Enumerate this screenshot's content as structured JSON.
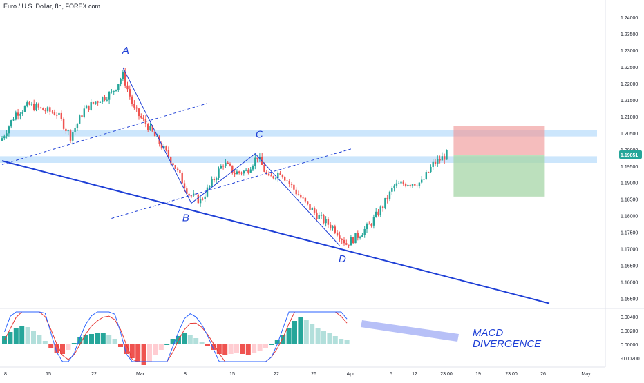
{
  "header": {
    "symbol_title": "Euro / U.S. Dollar, 8h, FOREX.com"
  },
  "colors": {
    "bull": "#26a69a",
    "bear": "#ef5350",
    "pattern": "#1e3fd6",
    "zone": "#bbdefb",
    "profit": "#a5d6a7",
    "loss": "#ef9a9a",
    "macd_line": "#2962ff",
    "signal_line": "#e53935",
    "hist_pos_strong": "#26a69a",
    "hist_pos_weak": "#b2dfdb",
    "hist_neg_strong": "#ef5350",
    "hist_neg_weak": "#ffcdd2",
    "price_badge": "#26a69a"
  },
  "chart_data": [
    {
      "type": "candlestick",
      "title": "Euro / U.S. Dollar, 8h, FOREX.com",
      "x_ticks": [
        "8",
        "15",
        "22",
        "Mar",
        "8",
        "15",
        "22",
        "26",
        "Apr",
        "5",
        "12",
        "23:00",
        "19",
        "23:00",
        "26",
        "May"
      ],
      "y_ticks": [
        "1.24000",
        "1.23500",
        "1.23000",
        "1.22500",
        "1.22000",
        "1.21500",
        "1.21000",
        "1.20500",
        "1.20000",
        "1.19500",
        "1.19000",
        "1.18500",
        "1.18000",
        "1.17500",
        "1.17000",
        "1.16500",
        "1.16000",
        "1.15500"
      ],
      "ylim": [
        1.153,
        1.2415
      ],
      "last_price": "1.19851",
      "close_path": [
        [
          0,
          1.2035
        ],
        [
          6,
          1.211
        ],
        [
          12,
          1.2135
        ],
        [
          18,
          1.212
        ],
        [
          24,
          1.211
        ],
        [
          30,
          1.204
        ],
        [
          36,
          1.212
        ],
        [
          42,
          1.215
        ],
        [
          48,
          1.217
        ],
        [
          53,
          1.2225
        ],
        [
          58,
          1.212
        ],
        [
          64,
          1.207
        ],
        [
          69,
          1.202
        ],
        [
          75,
          1.196
        ],
        [
          82,
          1.1865
        ],
        [
          87,
          1.1845
        ],
        [
          92,
          1.19
        ],
        [
          97,
          1.196
        ],
        [
          102,
          1.193
        ],
        [
          107,
          1.1935
        ],
        [
          112,
          1.198
        ],
        [
          117,
          1.191
        ],
        [
          122,
          1.1935
        ],
        [
          128,
          1.188
        ],
        [
          134,
          1.183
        ],
        [
          140,
          1.179
        ],
        [
          146,
          1.176
        ],
        [
          151,
          1.1715
        ],
        [
          156,
          1.174
        ],
        [
          161,
          1.177
        ],
        [
          167,
          1.183
        ],
        [
          172,
          1.189
        ],
        [
          178,
          1.19
        ],
        [
          184,
          1.19
        ],
        [
          189,
          1.1955
        ],
        [
          195,
          1.1985
        ]
      ],
      "annotations": [
        {
          "label": "A",
          "bar": 53,
          "price": 1.2248
        },
        {
          "label": "B",
          "bar": 83,
          "price": 1.1838
        },
        {
          "label": "C",
          "bar": 111,
          "price": 1.1988
        },
        {
          "label": "D",
          "bar": 148,
          "price": 1.171
        }
      ],
      "trendline": {
        "from": [
          0,
          1.1966
        ],
        "to": [
          240,
          1.1535
        ]
      },
      "channel_upper": {
        "from": [
          0,
          1.1955
        ],
        "to": [
          90,
          1.214
        ]
      },
      "channel_lower": {
        "from": [
          48,
          1.1792
        ],
        "to": [
          153,
          1.2002
        ]
      },
      "horizontal_zones": [
        {
          "low": 1.204,
          "high": 1.206
        },
        {
          "low": 1.196,
          "high": 1.198
        }
      ],
      "position": {
        "from_bar": 198,
        "to_bar": 238,
        "stop": 1.2072,
        "entry": 1.1983,
        "target": 1.1858
      }
    },
    {
      "type": "histogram",
      "series": [
        {
          "name": "",
          "values": [
            0.0012,
            0.0018,
            0.0024,
            0.0026,
            0.0025,
            0.002,
            0.0013,
            0.0005,
            -0.0005,
            -0.0012,
            -0.0014,
            -0.0008,
            0.0002,
            0.001,
            0.0014,
            0.0015,
            0.0016,
            0.0017,
            0.0014,
            0.0008,
            -0.0004,
            -0.0014,
            -0.002,
            -0.0026,
            -0.003,
            -0.0026,
            -0.0016,
            -0.0008,
            0.0,
            0.0008,
            0.0012,
            0.0016,
            0.0014,
            0.0009,
            0.0004,
            -0.0002,
            -0.0008,
            -0.0014,
            -0.0015,
            -0.0014,
            -0.0012,
            -0.0014,
            -0.0016,
            -0.0013,
            -0.001,
            -0.0005,
            0.0,
            0.0006,
            0.0014,
            0.0024,
            0.0034,
            0.004,
            0.0036,
            0.003,
            0.0024,
            0.002,
            0.0016,
            0.0012,
            0.0008,
            0.0006
          ]
        }
      ],
      "y_ticks": [
        "0.00400",
        "0.00200",
        "0.00000",
        "-0.00200"
      ],
      "ylim": [
        -0.0025,
        0.0047
      ],
      "overlay_text": "MACD\nDIVERGENCE"
    }
  ]
}
